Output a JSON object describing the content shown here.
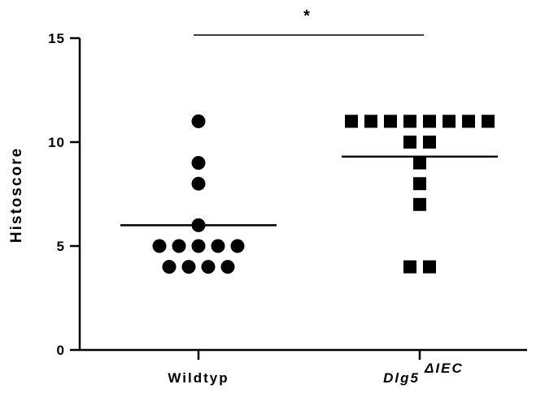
{
  "chart_data": {
    "type": "scatter",
    "ylabel": "Histoscore",
    "ylim": [
      0,
      15
    ],
    "yticks": [
      0,
      5,
      10,
      15
    ],
    "categories": [
      "Wildtyp",
      "Dlg5"
    ],
    "category_superscripts": [
      "",
      "ΔIEC"
    ],
    "series": [
      {
        "category": "Wildtyp",
        "marker": "circle",
        "color": "#000000",
        "values": [
          11,
          9,
          8,
          6,
          5,
          5,
          5,
          5,
          5,
          4,
          4,
          4,
          4
        ],
        "mean": 6
      },
      {
        "category": "Dlg5",
        "marker": "square",
        "color": "#000000",
        "values": [
          11,
          11,
          11,
          11,
          11,
          11,
          11,
          11,
          10,
          10,
          9,
          8,
          7,
          4,
          4
        ],
        "mean": 9.3
      }
    ],
    "significance": {
      "label": "*",
      "between": [
        "Wildtyp",
        "Dlg5"
      ],
      "y": 15.15
    }
  }
}
